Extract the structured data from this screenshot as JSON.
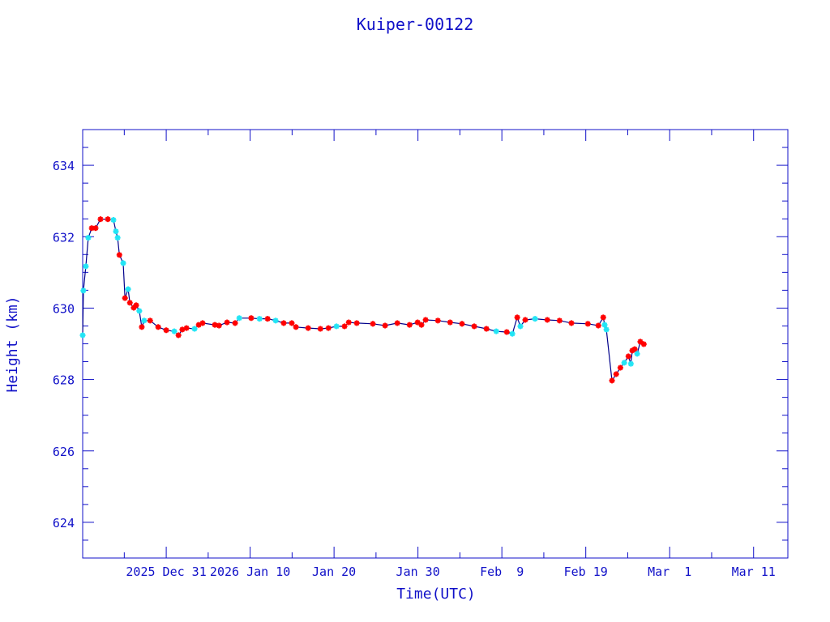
{
  "chart_data": {
    "type": "line",
    "title": "Kuiper-00122",
    "xlabel": "Time(UTC)",
    "ylabel": "Height (km)",
    "xlim": [
      "2025-12-21T01:00",
      "2026-03-15T02:00"
    ],
    "ylim": [
      623,
      635
    ],
    "grid": false,
    "y_ticks": [
      624,
      626,
      628,
      630,
      632,
      634
    ],
    "y_minor_step": 0.5,
    "x_ticks": [
      {
        "date": "2025-12-31T00:00",
        "label": "2025 Dec 31"
      },
      {
        "date": "2026-01-10T00:00",
        "label": "2026 Jan 10"
      },
      {
        "date": "2026-01-20T00:00",
        "label": "Jan 20"
      },
      {
        "date": "2026-01-30T00:00",
        "label": "Jan 30"
      },
      {
        "date": "2026-02-09T00:00",
        "label": "Feb  9"
      },
      {
        "date": "2026-02-19T00:00",
        "label": "Feb 19"
      },
      {
        "date": "2026-03-01T00:00",
        "label": "Mar  1"
      },
      {
        "date": "2026-03-11T00:00",
        "label": "Mar 11"
      }
    ],
    "x_minor_step_days": 5,
    "colors": {
      "axis": "#1010c8",
      "line": "#00008b",
      "marker_a": "#ff0000",
      "marker_b": "#22e5f5"
    },
    "points": [
      [
        "2025-12-21T01:00",
        629.24,
        "b"
      ],
      [
        "2025-12-21T03:00",
        630.49,
        "b"
      ],
      [
        "2025-12-21T10:00",
        631.17,
        "b"
      ],
      [
        "2025-12-21T17:00",
        631.97,
        "b"
      ],
      [
        "2025-12-22T03:00",
        632.24,
        "a"
      ],
      [
        "2025-12-22T14:00",
        632.24,
        "a"
      ],
      [
        "2025-12-23T04:00",
        632.49,
        "a"
      ],
      [
        "2025-12-24T01:00",
        632.49,
        "a"
      ],
      [
        "2025-12-24T17:00",
        632.47,
        "b"
      ],
      [
        "2025-12-25T00:00",
        632.15,
        "b"
      ],
      [
        "2025-12-25T05:00",
        631.97,
        "b"
      ],
      [
        "2025-12-25T10:00",
        631.49,
        "a"
      ],
      [
        "2025-12-25T21:00",
        631.26,
        "b"
      ],
      [
        "2025-12-26T02:00",
        630.28,
        "a"
      ],
      [
        "2025-12-26T11:00",
        630.53,
        "b"
      ],
      [
        "2025-12-26T16:00",
        630.15,
        "a"
      ],
      [
        "2025-12-27T03:00",
        630.01,
        "a"
      ],
      [
        "2025-12-27T10:00",
        630.08,
        "a"
      ],
      [
        "2025-12-27T19:00",
        629.92,
        "b"
      ],
      [
        "2025-12-28T02:00",
        629.47,
        "a"
      ],
      [
        "2025-12-28T09:00",
        629.65,
        "b"
      ],
      [
        "2025-12-29T02:00",
        629.65,
        "a"
      ],
      [
        "2025-12-30T01:00",
        629.47,
        "a"
      ],
      [
        "2025-12-31T00:00",
        629.38,
        "a"
      ],
      [
        "2025-12-31T23:00",
        629.35,
        "b"
      ],
      [
        "2026-01-01T11:00",
        629.24,
        "a"
      ],
      [
        "2026-01-01T22:00",
        629.4,
        "a"
      ],
      [
        "2026-01-02T10:00",
        629.44,
        "a"
      ],
      [
        "2026-01-03T09:00",
        629.42,
        "b"
      ],
      [
        "2026-01-03T21:00",
        629.53,
        "a"
      ],
      [
        "2026-01-04T08:00",
        629.58,
        "a"
      ],
      [
        "2026-01-05T19:00",
        629.53,
        "a"
      ],
      [
        "2026-01-06T07:00",
        629.51,
        "a"
      ],
      [
        "2026-01-07T06:00",
        629.6,
        "a"
      ],
      [
        "2026-01-08T05:00",
        629.58,
        "a"
      ],
      [
        "2026-01-08T17:00",
        629.72,
        "b"
      ],
      [
        "2026-01-10T03:00",
        629.72,
        "a"
      ],
      [
        "2026-01-11T03:00",
        629.7,
        "b"
      ],
      [
        "2026-01-12T02:00",
        629.7,
        "a"
      ],
      [
        "2026-01-13T01:00",
        629.65,
        "b"
      ],
      [
        "2026-01-14T00:00",
        629.58,
        "a"
      ],
      [
        "2026-01-14T23:00",
        629.58,
        "a"
      ],
      [
        "2026-01-15T11:00",
        629.47,
        "a"
      ],
      [
        "2026-01-16T22:00",
        629.44,
        "a"
      ],
      [
        "2026-01-18T09:00",
        629.42,
        "a"
      ],
      [
        "2026-01-19T08:00",
        629.44,
        "a"
      ],
      [
        "2026-01-20T07:00",
        629.49,
        "b"
      ],
      [
        "2026-01-21T06:00",
        629.49,
        "a"
      ],
      [
        "2026-01-21T18:00",
        629.6,
        "a"
      ],
      [
        "2026-01-22T17:00",
        629.58,
        "a"
      ],
      [
        "2026-01-24T15:00",
        629.56,
        "a"
      ],
      [
        "2026-01-26T02:00",
        629.51,
        "a"
      ],
      [
        "2026-01-27T13:00",
        629.58,
        "a"
      ],
      [
        "2026-01-29T00:00",
        629.53,
        "a"
      ],
      [
        "2026-01-29T23:00",
        629.6,
        "a"
      ],
      [
        "2026-01-30T10:00",
        629.53,
        "a"
      ],
      [
        "2026-01-30T22:00",
        629.67,
        "a"
      ],
      [
        "2026-02-01T09:00",
        629.65,
        "a"
      ],
      [
        "2026-02-02T20:00",
        629.6,
        "a"
      ],
      [
        "2026-02-04T06:00",
        629.56,
        "a"
      ],
      [
        "2026-02-05T17:00",
        629.49,
        "a"
      ],
      [
        "2026-02-07T04:00",
        629.42,
        "a"
      ],
      [
        "2026-02-08T08:00",
        629.35,
        "b"
      ],
      [
        "2026-02-09T14:00",
        629.33,
        "a"
      ],
      [
        "2026-02-10T06:00",
        629.28,
        "b"
      ],
      [
        "2026-02-10T20:00",
        629.74,
        "a"
      ],
      [
        "2026-02-11T05:00",
        629.49,
        "b"
      ],
      [
        "2026-02-11T19:00",
        629.67,
        "a"
      ],
      [
        "2026-02-12T23:00",
        629.7,
        "b"
      ],
      [
        "2026-02-14T10:00",
        629.67,
        "a"
      ],
      [
        "2026-02-15T21:00",
        629.65,
        "a"
      ],
      [
        "2026-02-17T07:00",
        629.58,
        "a"
      ],
      [
        "2026-02-19T06:00",
        629.56,
        "a"
      ],
      [
        "2026-02-20T12:00",
        629.51,
        "a"
      ],
      [
        "2026-02-21T02:00",
        629.74,
        "a"
      ],
      [
        "2026-02-21T06:00",
        629.53,
        "b"
      ],
      [
        "2026-02-21T11:00",
        629.4,
        "b"
      ],
      [
        "2026-02-22T03:00",
        627.97,
        "a"
      ],
      [
        "2026-02-22T15:00",
        628.15,
        "a"
      ],
      [
        "2026-02-23T03:00",
        628.33,
        "a"
      ],
      [
        "2026-02-23T14:00",
        628.47,
        "b"
      ],
      [
        "2026-02-24T02:00",
        628.65,
        "a"
      ],
      [
        "2026-02-24T09:00",
        628.44,
        "b"
      ],
      [
        "2026-02-24T13:00",
        628.81,
        "a"
      ],
      [
        "2026-02-24T20:00",
        628.85,
        "a"
      ],
      [
        "2026-02-25T03:00",
        628.72,
        "b"
      ],
      [
        "2026-02-25T12:00",
        629.06,
        "a"
      ],
      [
        "2026-02-25T22:00",
        628.99,
        "a"
      ]
    ]
  }
}
